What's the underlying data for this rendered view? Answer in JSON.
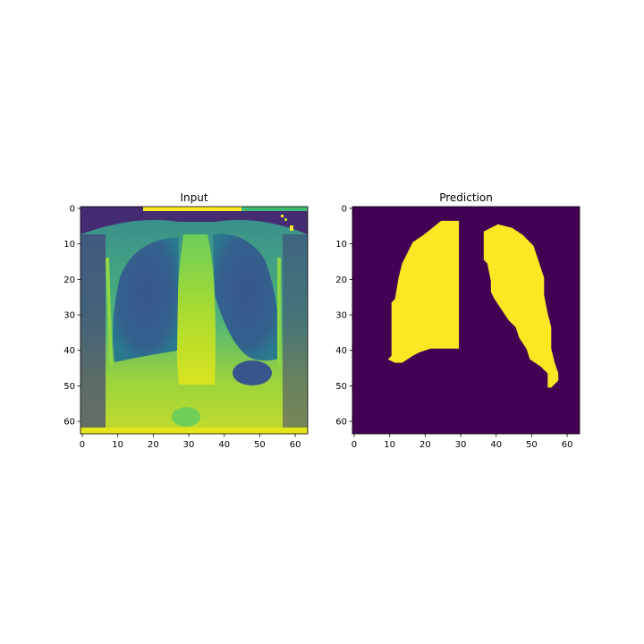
{
  "colors": {
    "background": "#ffffff",
    "viridis_low": "#440154",
    "viridis_high": "#fde725",
    "axis": "#000000"
  },
  "chart_data": [
    {
      "type": "heatmap",
      "title": "Input",
      "colormap": "viridis",
      "xlim": [
        0,
        64
      ],
      "ylim": [
        64,
        0
      ],
      "xticks": [
        0,
        10,
        20,
        30,
        40,
        50,
        60
      ],
      "yticks": [
        0,
        10,
        20,
        30,
        40,
        50,
        60
      ],
      "grid": false,
      "description": "64x64 grayscale chest X-ray rendered with viridis colormap"
    },
    {
      "type": "heatmap",
      "title": "Prediction",
      "colormap": "viridis",
      "xlim": [
        0,
        64
      ],
      "ylim": [
        64,
        0
      ],
      "xticks": [
        0,
        10,
        20,
        30,
        40,
        50,
        60
      ],
      "yticks": [
        0,
        10,
        20,
        30,
        40,
        50,
        60
      ],
      "grid": false,
      "values": [
        0,
        1
      ],
      "regions": [
        {
          "label": 1,
          "outline": [
            [
              29.5,
              3.5
            ],
            [
              24.5,
              3.5
            ],
            [
              19.5,
              7.5
            ],
            [
              16.5,
              9.5
            ],
            [
              13.5,
              15.5
            ],
            [
              12.5,
              19.5
            ],
            [
              11.5,
              25.5
            ],
            [
              10.5,
              26.5
            ],
            [
              10.5,
              41.5
            ],
            [
              9.5,
              42.5
            ],
            [
              11.5,
              43.5
            ],
            [
              13.5,
              43.5
            ],
            [
              16.5,
              41.5
            ],
            [
              18.5,
              40.5
            ],
            [
              21.5,
              39.5
            ],
            [
              29.5,
              39.5
            ],
            [
              29.5,
              22.5
            ]
          ]
        },
        {
          "label": 1,
          "outline": [
            [
              36.5,
              6.5
            ],
            [
              38.5,
              5.5
            ],
            [
              40.5,
              4.5
            ],
            [
              44.5,
              5.5
            ],
            [
              47.5,
              7.5
            ],
            [
              50.5,
              10.5
            ],
            [
              51.5,
              13.5
            ],
            [
              52.5,
              16.5
            ],
            [
              53.5,
              19.5
            ],
            [
              53.5,
              24.5
            ],
            [
              54.5,
              29.5
            ],
            [
              55.5,
              33.5
            ],
            [
              55.5,
              39.5
            ],
            [
              56.5,
              43.5
            ],
            [
              57.5,
              46.5
            ],
            [
              57.5,
              48.5
            ],
            [
              56.5,
              49.5
            ],
            [
              55.5,
              50.5
            ],
            [
              54.5,
              50.5
            ],
            [
              54.5,
              46.5
            ],
            [
              52.5,
              44.5
            ],
            [
              49.5,
              42.5
            ],
            [
              48.5,
              39.5
            ],
            [
              46.5,
              36.5
            ],
            [
              45.5,
              33.5
            ],
            [
              43.5,
              31.5
            ],
            [
              41.5,
              28.5
            ],
            [
              39.5,
              25.5
            ],
            [
              38.5,
              23.5
            ],
            [
              38.5,
              20.5
            ],
            [
              37.5,
              15.5
            ],
            [
              36.5,
              14.5
            ]
          ]
        }
      ]
    }
  ]
}
